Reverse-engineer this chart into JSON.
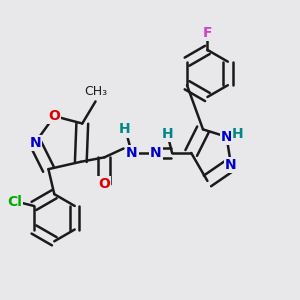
{
  "bg_color": "#e8e8ea",
  "bond_color": "#1a1a1a",
  "bond_width": 1.8,
  "atom_colors": {
    "O": "#dd0000",
    "N": "#0000cc",
    "NH": "#0000cc",
    "H": "#008888",
    "Cl": "#00aa00",
    "F": "#cc44cc",
    "C": "#1a1a1a"
  }
}
